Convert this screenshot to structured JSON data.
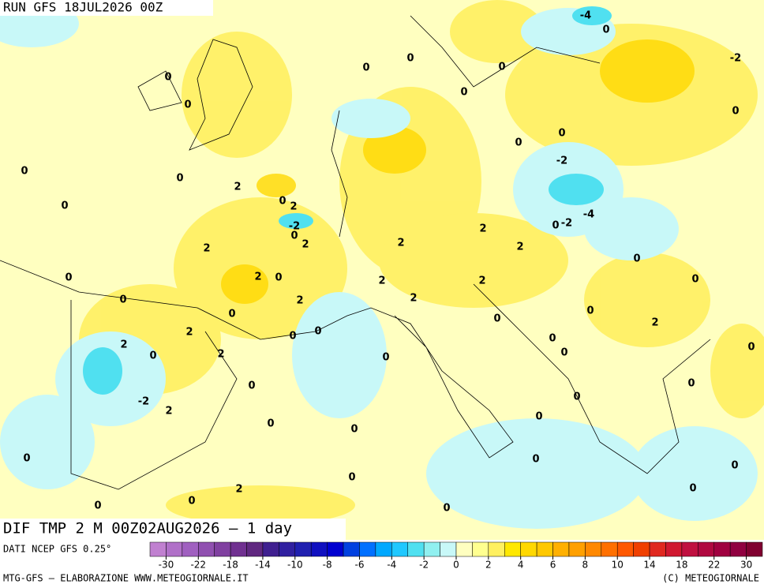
{
  "header": {
    "run": "RUN GFS 18JUL2026 00Z"
  },
  "map": {
    "title": "DIF TMP 2 M 00Z02AUG2026 — 1 day",
    "contour_labels": [
      -4,
      0,
      -2,
      0,
      0,
      0,
      0,
      0,
      0,
      0,
      0,
      0,
      -2,
      0,
      0,
      2,
      0,
      0,
      2,
      -2,
      -4,
      0,
      -2,
      0,
      2,
      2,
      2,
      2,
      2,
      0,
      0,
      2,
      0,
      2,
      2,
      0,
      0,
      2,
      2,
      0,
      2,
      0,
      0,
      0,
      0,
      2,
      0,
      2,
      0,
      2,
      0,
      0,
      0,
      0,
      -2,
      2,
      0,
      0,
      0,
      0,
      0,
      0,
      0,
      0,
      2,
      0,
      0,
      0,
      0,
      0
    ]
  },
  "legend": {
    "source": "DATI NCEP GFS 0.25°",
    "ticks": [
      -30,
      -22,
      -18,
      -14,
      -10,
      -8,
      -6,
      -4,
      -2,
      0,
      2,
      4,
      6,
      8,
      10,
      14,
      18,
      22,
      30
    ],
    "colors": [
      "#c080d0",
      "#b070c8",
      "#a060c0",
      "#9050b0",
      "#8040a0",
      "#703090",
      "#602880",
      "#402090",
      "#3020a0",
      "#2020b0",
      "#1010c0",
      "#0000d0",
      "#0040e0",
      "#0070ff",
      "#00a8ff",
      "#20c8ff",
      "#50e0f0",
      "#90f0f0",
      "#c8f8f8",
      "#ffffc0",
      "#ffff90",
      "#fff060",
      "#ffe800",
      "#ffd800",
      "#ffc800",
      "#ffb000",
      "#ffa000",
      "#ff8800",
      "#ff7000",
      "#ff5800",
      "#f04000",
      "#e02820",
      "#d01830",
      "#c01040",
      "#b00840",
      "#a00040",
      "#900040",
      "#800030"
    ]
  },
  "footer": {
    "credit": "MTG-GFS — ELABORAZIONE WWW.METEOGIORNALE.IT",
    "copyright": "(C) METEOGIORNALE"
  }
}
